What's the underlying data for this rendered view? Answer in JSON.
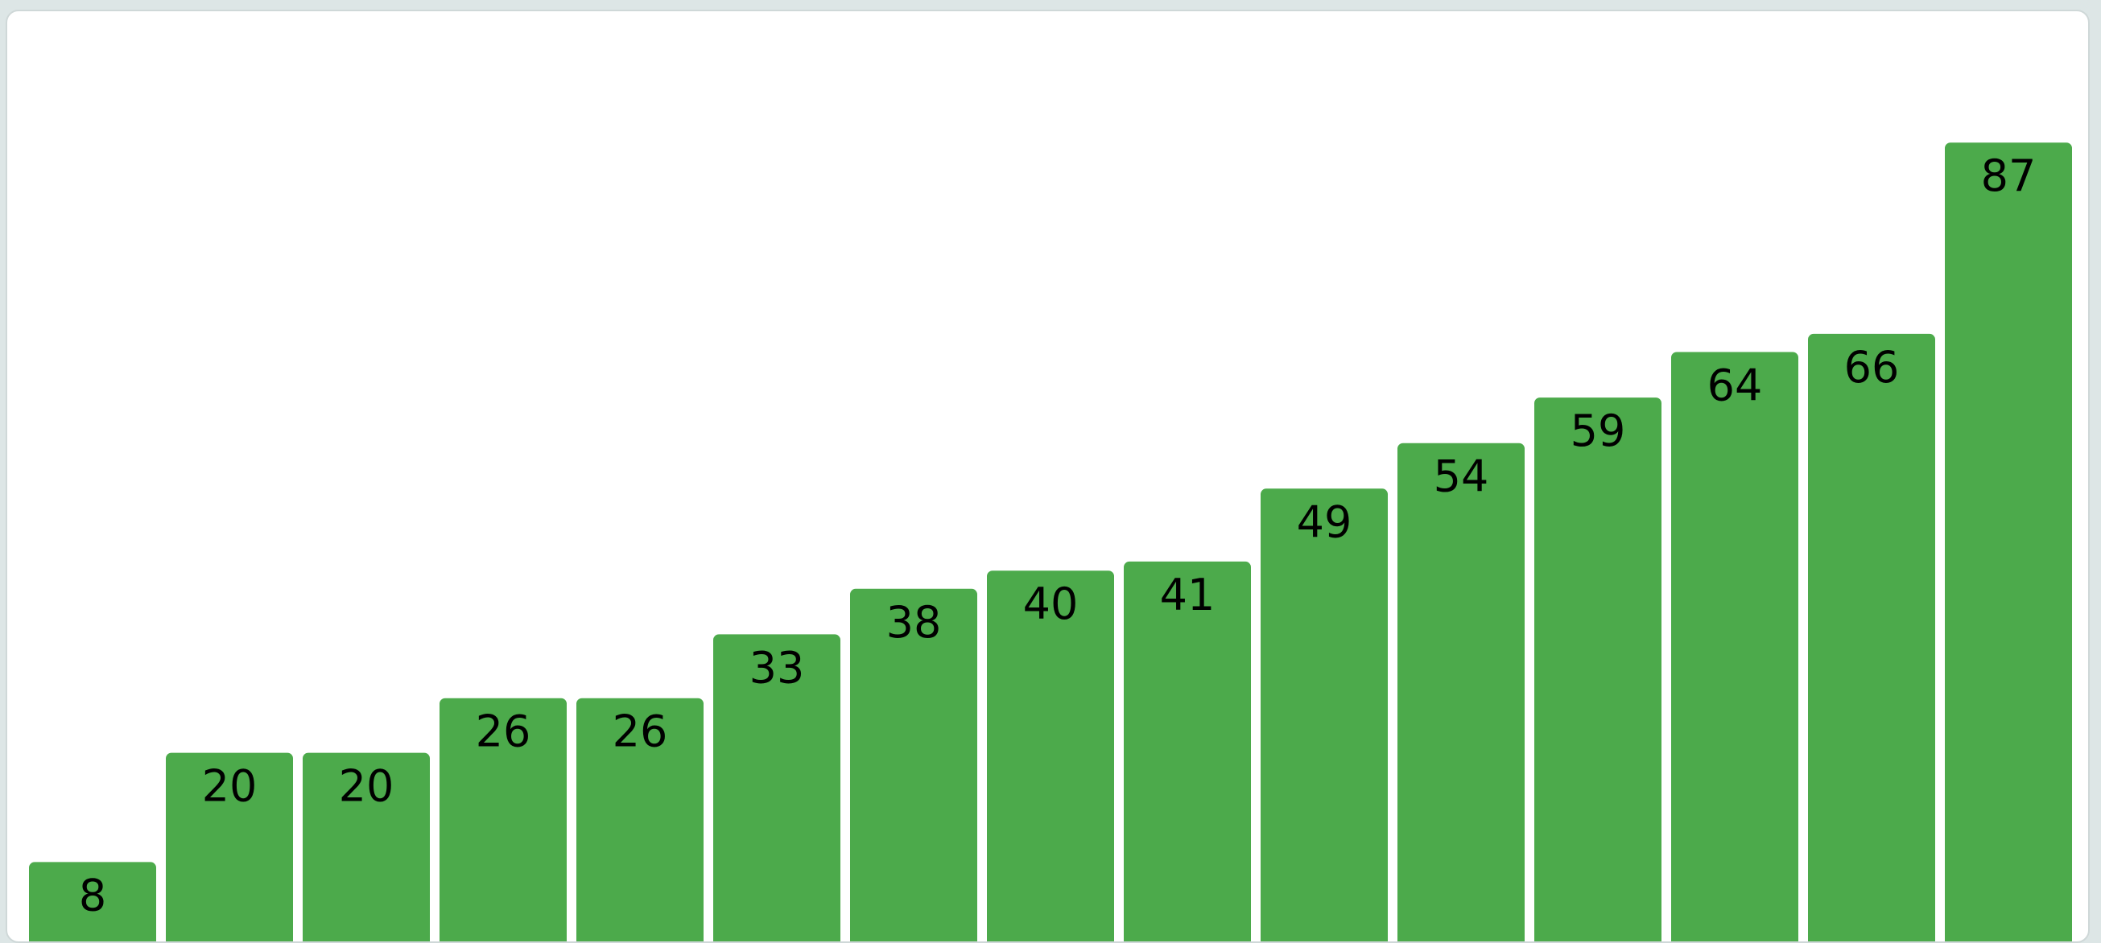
{
  "chart_data": {
    "type": "bar",
    "title": "",
    "xlabel": "",
    "ylabel": "",
    "ylim": [
      0,
      100
    ],
    "grid": false,
    "legend": "none",
    "colors": {
      "bar": "#4caa4b",
      "label": "#000000",
      "background": "#ffffff"
    },
    "values": [
      8,
      20,
      20,
      26,
      26,
      33,
      38,
      40,
      41,
      49,
      54,
      59,
      64,
      66,
      87
    ]
  }
}
